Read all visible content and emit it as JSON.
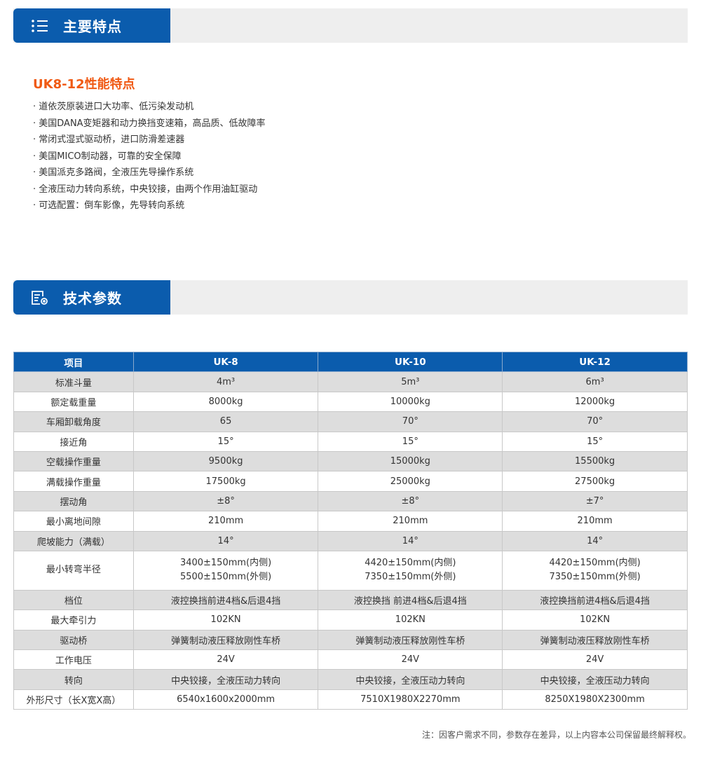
{
  "sections": {
    "features": "主要特点",
    "specs": "技术参数"
  },
  "features_title": "UK8-12性能特点",
  "features": [
    "· 道依茨原装进口大功率、低污染发动机",
    "· 美国DANA变矩器和动力换挡变速箱，高品质、低故障率",
    "· 常闭式湿式驱动桥，进口防滑差速器",
    "· 美国MICO制动器，可靠的安全保障",
    "· 美国派克多路阀，全液压先导操作系统",
    "· 全液压动力转向系统，中央铰接，由两个作用油缸驱动",
    "· 可选配置：倒车影像，先导转向系统"
  ],
  "colors": {
    "brand": "#0b5cad",
    "accent": "#f05a14"
  },
  "table": {
    "headers": [
      "项目",
      "UK-8",
      "UK-10",
      "UK-12"
    ],
    "rows": [
      [
        "标准斗量",
        "4m³",
        "5m³",
        "6m³"
      ],
      [
        "额定载重量",
        "8000kg",
        "10000kg",
        "12000kg"
      ],
      [
        "车厢卸载角度",
        "65",
        "70°",
        "70°"
      ],
      [
        "接近角",
        "15°",
        "15°",
        "15°"
      ],
      [
        "空载操作重量",
        "9500kg",
        "15000kg",
        "15500kg"
      ],
      [
        "满载操作重量",
        "17500kg",
        "25000kg",
        "27500kg"
      ],
      [
        "摆动角",
        "±8°",
        "±8°",
        "±7°"
      ],
      [
        "最小离地间隙",
        "210mm",
        "210mm",
        "210mm"
      ],
      [
        "爬坡能力（满载）",
        "14°",
        "14°",
        "14°"
      ],
      [
        "最小转弯半径",
        "3400±150mm(内侧)\n5500±150mm(外侧)",
        "4420±150mm(内侧)\n7350±150mm(外侧)",
        "4420±150mm(内侧)\n7350±150mm(外侧)"
      ],
      [
        "档位",
        "液控换挡前进4档&后退4挡",
        "液控换挡 前进4档&后退4挡",
        "液控换挡前进4档&后退4挡"
      ],
      [
        "最大牵引力",
        "102KN",
        "102KN",
        "102KN"
      ],
      [
        "驱动桥",
        "弹簧制动液压释放刚性车桥",
        "弹簧制动液压释放刚性车桥",
        "弹簧制动液压释放刚性车桥"
      ],
      [
        "工作电压",
        "24V",
        "24V",
        "24V"
      ],
      [
        "转向",
        "中央铰接，全液压动力转向",
        "中央铰接，全液压动力转向",
        "中央铰接，全液压动力转向"
      ],
      [
        "外形尺寸（长X宽X高）",
        "6540x1600x2000mm",
        "7510X1980X2270mm",
        "8250X1980X2300mm"
      ]
    ]
  },
  "note": "注：因客户需求不同，参数存在差异，以上内容本公司保留最终解释权。"
}
